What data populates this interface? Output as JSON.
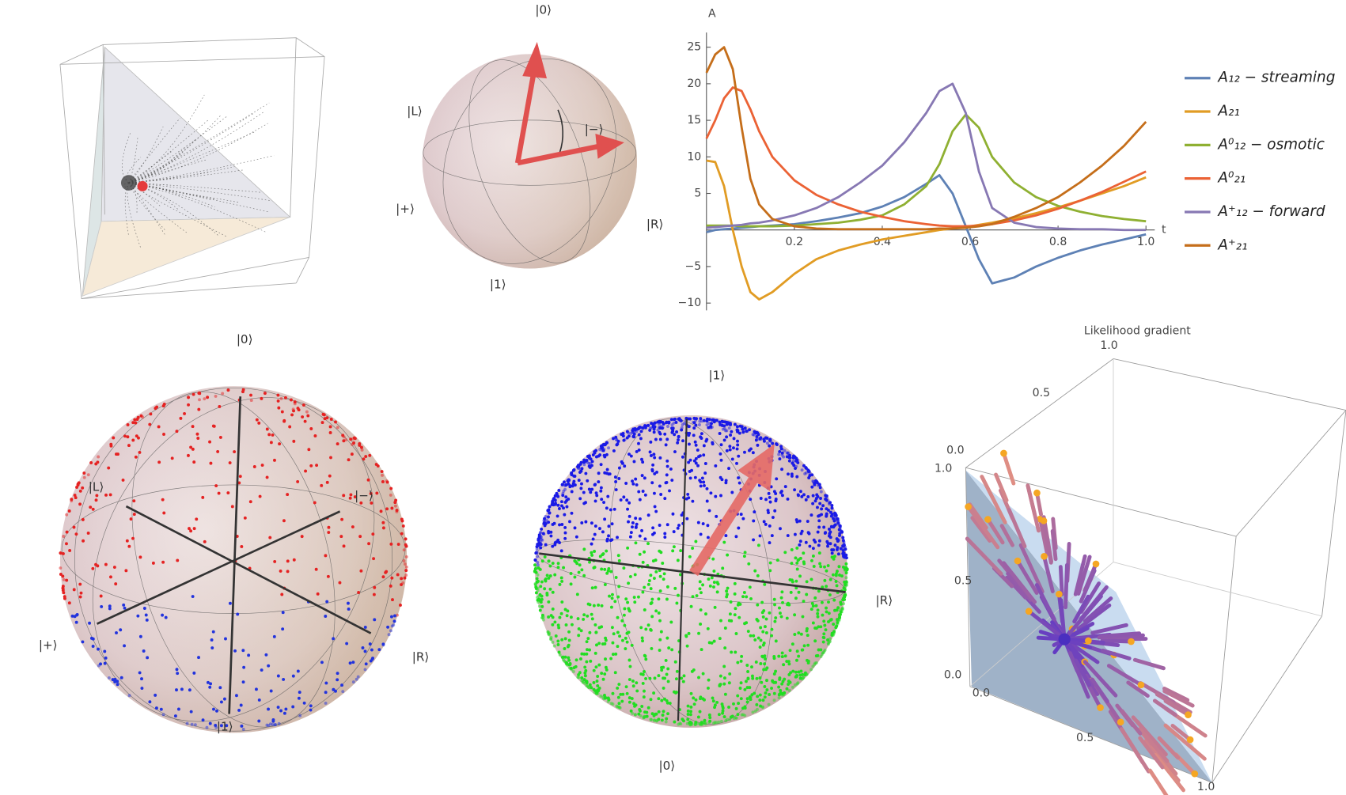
{
  "panels": {
    "bloch_top": {
      "labels": [
        "|0⟩",
        "|L⟩",
        "|−⟩",
        "|+⟩",
        "|R⟩",
        "|1⟩"
      ]
    },
    "bloch_left": {
      "labels": [
        "|0⟩",
        "|L⟩",
        "|−⟩",
        "|+⟩",
        "|R⟩",
        "|1⟩"
      ]
    },
    "bloch_mid": {
      "labels": [
        "|1⟩",
        "|R⟩",
        "|0⟩"
      ]
    },
    "gradient_3d": {
      "title": "Likelihood gradient",
      "ticks": [
        "1.0",
        "0.5",
        "0.0",
        "1.0",
        "0.5",
        "0.0",
        "0.0",
        "0.5",
        "1.0"
      ]
    }
  },
  "chart_data": {
    "type": "line",
    "xlabel": "t",
    "ylabel": "A",
    "x": [
      0,
      0.02,
      0.04,
      0.06,
      0.08,
      0.1,
      0.12,
      0.15,
      0.2,
      0.25,
      0.3,
      0.35,
      0.4,
      0.45,
      0.5,
      0.53,
      0.56,
      0.59,
      0.62,
      0.65,
      0.7,
      0.75,
      0.8,
      0.85,
      0.9,
      0.95,
      1.0
    ],
    "series": [
      {
        "name": "A₁₂ − streaming",
        "color": "#5e81b5",
        "values": [
          -0.3,
          0,
          0.1,
          0.2,
          0.3,
          0.4,
          0.5,
          0.6,
          0.8,
          1.2,
          1.7,
          2.3,
          3.2,
          4.5,
          6.3,
          7.5,
          5,
          0.5,
          -4,
          -7.3,
          -6.5,
          -5,
          -3.8,
          -2.8,
          -2,
          -1.3,
          -0.6
        ]
      },
      {
        "name": "A₂₁",
        "color": "#e19c24",
        "values": [
          9.5,
          9.3,
          6,
          0,
          -5,
          -8.5,
          -9.5,
          -8.5,
          -6,
          -4,
          -2.8,
          -2,
          -1.3,
          -0.8,
          -0.3,
          0,
          0.2,
          0.4,
          0.7,
          1,
          1.6,
          2.3,
          3.1,
          4,
          5,
          6,
          7.2
        ]
      },
      {
        "name": "A⁰₁₂ − osmotic",
        "color": "#8fb032",
        "values": [
          0.6,
          0.6,
          0.6,
          0.6,
          0.5,
          0.5,
          0.5,
          0.5,
          0.6,
          0.8,
          1,
          1.4,
          2,
          3.5,
          6,
          9,
          13.5,
          15.8,
          14,
          10,
          6.5,
          4.5,
          3.3,
          2.5,
          1.9,
          1.5,
          1.2
        ]
      },
      {
        "name": "A⁰₂₁",
        "color": "#eb6235",
        "values": [
          12.5,
          15,
          18,
          19.5,
          19,
          16.5,
          13.5,
          10,
          6.8,
          4.8,
          3.5,
          2.5,
          1.8,
          1.2,
          0.8,
          0.6,
          0.5,
          0.5,
          0.6,
          0.8,
          1.3,
          2,
          2.9,
          4,
          5.2,
          6.6,
          8
        ]
      },
      {
        "name": "A⁺₁₂ − forward",
        "color": "#8778b3",
        "values": [
          0.3,
          0.4,
          0.5,
          0.6,
          0.7,
          0.9,
          1,
          1.3,
          2,
          3,
          4.5,
          6.5,
          8.8,
          12,
          16,
          19,
          20,
          16,
          8,
          3,
          1,
          0.4,
          0.2,
          0.1,
          0.1,
          0,
          0
        ]
      },
      {
        "name": "A⁺₂₁",
        "color": "#c56e1a",
        "values": [
          21.5,
          24,
          25,
          22,
          14,
          7,
          3.5,
          1.5,
          0.5,
          0.2,
          0.1,
          0.1,
          0.1,
          0.1,
          0.1,
          0.2,
          0.2,
          0.3,
          0.5,
          0.8,
          1.8,
          3,
          4.5,
          6.5,
          8.8,
          11.5,
          14.8
        ]
      }
    ],
    "xlim": [
      0,
      1.02
    ],
    "ylim": [
      -11,
      27
    ],
    "xticks": [
      0.2,
      0.4,
      0.6,
      0.8,
      {
        "value": 1,
        "label": "1.0"
      }
    ],
    "yticks": [
      {
        "value": -10,
        "label": "−10"
      },
      {
        "value": -5,
        "label": "−5"
      },
      5,
      10,
      15,
      20,
      25
    ]
  }
}
